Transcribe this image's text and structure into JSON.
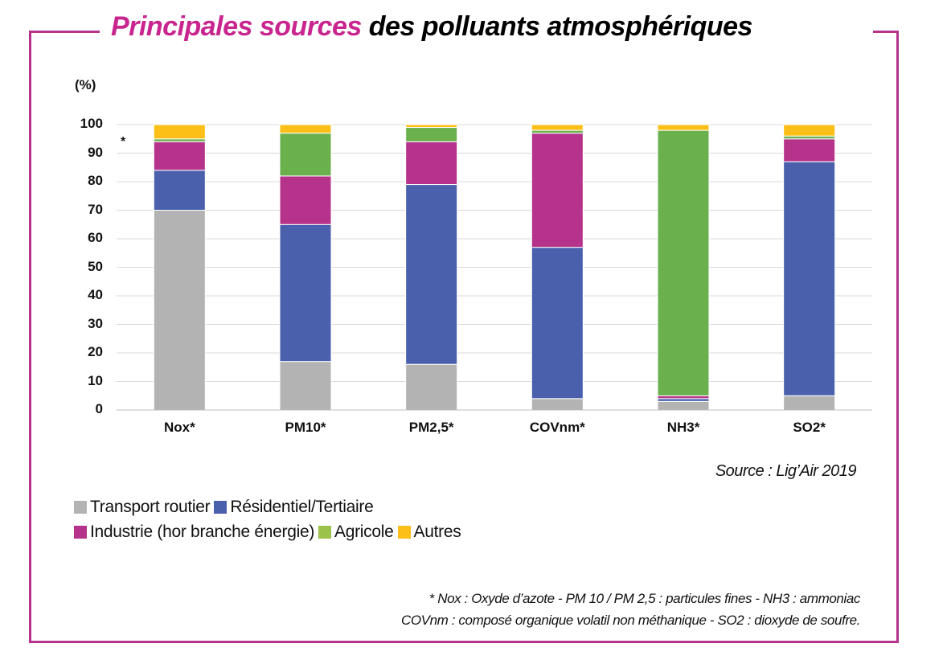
{
  "title": {
    "accent": "Principales sources",
    "rest": " des polluants atmosphériques"
  },
  "unit_label": "(%)",
  "star_marker": "*",
  "colors": {
    "frame": "#b5338a",
    "title_accent": "#c8258e"
  },
  "chart_data": {
    "type": "bar",
    "stacked": true,
    "categories": [
      "Nox*",
      "PM10*",
      "PM2,5*",
      "COVnm*",
      "NH3*",
      "SO2*"
    ],
    "ylim": [
      0,
      100
    ],
    "yticks": [
      "0",
      "10",
      "20",
      "30",
      "40",
      "50",
      "60",
      "70",
      "80",
      "90",
      "100"
    ],
    "ylabel": "(%)",
    "grid": true,
    "series": [
      {
        "name": "Transport routier",
        "color": "#b3b3b3",
        "values": [
          70,
          17,
          16,
          4,
          3,
          5
        ]
      },
      {
        "name": "Résidentiel/Tertiaire",
        "color": "#4a60ad",
        "values": [
          14,
          48,
          63,
          53,
          1,
          82
        ]
      },
      {
        "name": "Industrie (hor branche énergie)",
        "color": "#b5338a",
        "values": [
          10,
          17,
          15,
          40,
          1,
          8
        ]
      },
      {
        "name": "Agricole",
        "color": "#6ab04c",
        "values": [
          1,
          15,
          5,
          1,
          93,
          1
        ]
      },
      {
        "name": "Autres",
        "color": "#fbbf17",
        "values": [
          5,
          3,
          1,
          2,
          2,
          4
        ]
      }
    ]
  },
  "legend_rows": [
    [
      {
        "label": "Transport routier",
        "color": "#b3b3b3"
      },
      {
        "label": "Résidentiel/Tertiaire",
        "color": "#4a60ad"
      }
    ],
    [
      {
        "label": "Industrie (hor branche énergie)",
        "color": "#b5338a"
      },
      {
        "label": "Agricole",
        "color": "#9bc24a"
      },
      {
        "label": "Autres",
        "color": "#fbbf17"
      }
    ]
  ],
  "source": "Source : Lig’Air 2019",
  "footnote": {
    "line1": "* Nox : Oxyde d’azote - PM 10 / PM 2,5 : particules fines - NH3 : ammoniac",
    "line2": "COVnm : composé organique volatil non méthanique - SO2 : dioxyde de soufre."
  }
}
